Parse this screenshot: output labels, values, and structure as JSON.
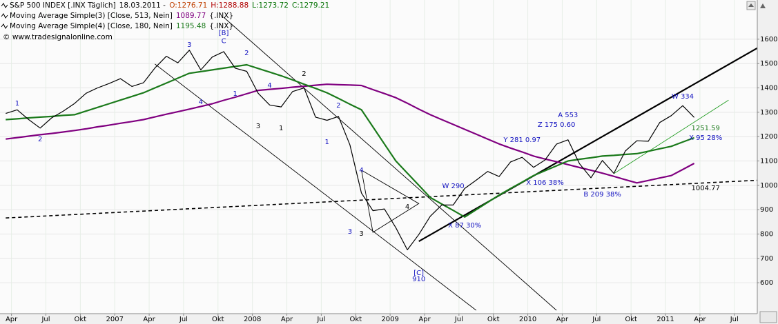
{
  "chart_data": {
    "type": "line",
    "quote": {
      "date": "18.03.2011 -",
      "open": "O:1276.71",
      "high": "H:1288.88",
      "low": "L:1273.72",
      "close": "C:1279.21"
    },
    "watermark": "© www.tradesignalonline.com",
    "y_axis_side": "right",
    "grid": true,
    "x": [
      "2006-03",
      "2006-04",
      "2006-05",
      "2006-06",
      "2006-07",
      "2006-08",
      "2006-09",
      "2006-10",
      "2006-11",
      "2006-12",
      "2007-01",
      "2007-02",
      "2007-03",
      "2007-04",
      "2007-05",
      "2007-06",
      "2007-07",
      "2007-08",
      "2007-09",
      "2007-10",
      "2007-11",
      "2007-12",
      "2008-01",
      "2008-02",
      "2008-03",
      "2008-04",
      "2008-05",
      "2008-06",
      "2008-07",
      "2008-08",
      "2008-09",
      "2008-10",
      "2008-11",
      "2008-12",
      "2009-01",
      "2009-02",
      "2009-03",
      "2009-04",
      "2009-05",
      "2009-06",
      "2009-07",
      "2009-08",
      "2009-09",
      "2009-10",
      "2009-11",
      "2009-12",
      "2010-01",
      "2010-02",
      "2010-03",
      "2010-04",
      "2010-05",
      "2010-06",
      "2010-07",
      "2010-08",
      "2010-09",
      "2010-10",
      "2010-11",
      "2010-12",
      "2011-01",
      "2011-02",
      "2011-03"
    ],
    "series": [
      {
        "name": "S&P 500 INDEX [.INX Täglich]",
        "color": "#000000",
        "values": [
          1295,
          1310,
          1270,
          1235,
          1277,
          1304,
          1336,
          1378,
          1400,
          1418,
          1438,
          1406,
          1421,
          1482,
          1530,
          1503,
          1555,
          1474,
          1527,
          1549,
          1481,
          1468,
          1378,
          1330,
          1322,
          1385,
          1400,
          1280,
          1267,
          1283,
          1166,
          968,
          896,
          903,
          826,
          735,
          798,
          873,
          919,
          919,
          987,
          1021,
          1057,
          1036,
          1096,
          1115,
          1074,
          1104,
          1169,
          1187,
          1089,
          1031,
          1102,
          1049,
          1141,
          1183,
          1181,
          1258,
          1286,
          1327,
          1279
        ]
      },
      {
        "name": "Moving Average Simple(3) [Close, 513, Nein]",
        "color": "#800080",
        "last_value": 1089.77,
        "source": "{.INX}",
        "values": [
          1190,
          1196,
          1202,
          1208,
          1213,
          1219,
          1225,
          1232,
          1240,
          1247,
          1255,
          1262,
          1270,
          1281,
          1292,
          1302,
          1313,
          1324,
          1335,
          1349,
          1362,
          1376,
          1390,
          1394,
          1398,
          1403,
          1407,
          1411,
          1415,
          1413,
          1412,
          1410,
          1393,
          1377,
          1360,
          1337,
          1313,
          1290,
          1270,
          1250,
          1230,
          1210,
          1190,
          1170,
          1153,
          1137,
          1120,
          1108,
          1097,
          1085,
          1073,
          1062,
          1050,
          1037,
          1023,
          1010,
          1020,
          1030,
          1040,
          1065,
          1090
        ]
      },
      {
        "name": "Moving Average Simple(4) [Close, 180, Nein]",
        "color": "#1b7a1b",
        "last_value": 1195.48,
        "source": "{.INX}",
        "values": [
          1270,
          1273,
          1277,
          1280,
          1283,
          1287,
          1290,
          1305,
          1320,
          1335,
          1350,
          1365,
          1380,
          1400,
          1420,
          1440,
          1460,
          1467,
          1474,
          1481,
          1488,
          1495,
          1480,
          1465,
          1450,
          1433,
          1415,
          1398,
          1380,
          1357,
          1333,
          1310,
          1240,
          1170,
          1100,
          1050,
          1000,
          950,
          923,
          897,
          870,
          900,
          930,
          960,
          987,
          1013,
          1040,
          1060,
          1080,
          1100,
          1107,
          1113,
          1120,
          1123,
          1127,
          1130,
          1140,
          1150,
          1160,
          1178,
          1195
        ]
      }
    ],
    "lines": [
      {
        "x": [
          "2007-04",
          "2009-08"
        ],
        "y": [
          1498,
          487
        ],
        "color": "#000000",
        "style": "thin"
      },
      {
        "x": [
          "2007-10",
          "2010-03"
        ],
        "y": [
          1690,
          487
        ],
        "color": "#000000",
        "style": "thin"
      },
      {
        "x": [
          "2008-10",
          "2009-03",
          "2008-11",
          "2008-10"
        ],
        "y": [
          1062,
          925,
          807,
          1062
        ],
        "color": "#000000",
        "style": "thin"
      },
      {
        "x": [
          "2009-03",
          "2011-09"
        ],
        "y": [
          770,
          1577
        ],
        "color": "#000000",
        "style": "thick"
      },
      {
        "x": [
          "2006-03",
          "2011-09"
        ],
        "y": [
          866,
          1022
        ],
        "color": "#000000",
        "style": "dashed"
      },
      {
        "x": [
          "2010-08",
          "2011-06"
        ],
        "y": [
          1048,
          1350
        ],
        "color": "#1b9a1b",
        "style": "thin"
      }
    ],
    "annotations": [
      {
        "text": "1",
        "x": "2006-04",
        "y": 1337,
        "color": "#1010c0"
      },
      {
        "text": "2",
        "x": "2006-06",
        "y": 1189,
        "color": "#1010c0"
      },
      {
        "text": "3",
        "x": "2007-07",
        "y": 1577,
        "color": "#1010c0"
      },
      {
        "text": "4",
        "x": "2007-08",
        "y": 1342,
        "color": "#1010c0"
      },
      {
        "text": "[B]",
        "x": "2007-10",
        "y": 1625,
        "color": "#1010c0"
      },
      {
        "text": "C",
        "x": "2007-10",
        "y": 1592,
        "color": "#1010c0"
      },
      {
        "text": "2",
        "x": "2007-12",
        "y": 1543,
        "color": "#1010c0"
      },
      {
        "text": "1",
        "x": "2007-11",
        "y": 1376,
        "color": "#1010c0"
      },
      {
        "text": "4",
        "x": "2008-02",
        "y": 1410,
        "color": "#1010c0"
      },
      {
        "text": "3",
        "x": "2008-01",
        "y": 1243,
        "color": "#000000"
      },
      {
        "text": "1",
        "x": "2008-03",
        "y": 1235,
        "color": "#000000"
      },
      {
        "text": "2",
        "x": "2008-05",
        "y": 1458,
        "color": "#000000"
      },
      {
        "text": "1",
        "x": "2008-07",
        "y": 1178,
        "color": "#1010c0"
      },
      {
        "text": "2",
        "x": "2008-08",
        "y": 1328,
        "color": "#1010c0"
      },
      {
        "text": "4",
        "x": "2008-10",
        "y": 1062,
        "color": "#1010c0"
      },
      {
        "text": "3",
        "x": "2008-09",
        "y": 810,
        "color": "#1010c0"
      },
      {
        "text": "3",
        "x": "2008-10",
        "y": 801,
        "color": "#000000"
      },
      {
        "text": "4",
        "x": "2009-02",
        "y": 912,
        "color": "#000000"
      },
      {
        "text": "[C]",
        "x": "2009-03",
        "y": 640,
        "color": "#1010c0"
      },
      {
        "text": "910",
        "x": "2009-03",
        "y": 615,
        "color": "#1010c0"
      },
      {
        "text": "W 290",
        "x": "2009-06",
        "y": 997,
        "color": "#1010c0"
      },
      {
        "text": "X 87 30%",
        "x": "2009-07",
        "y": 835,
        "color": "#1010c0"
      },
      {
        "text": "Y 281 0.97",
        "x": "2009-12",
        "y": 1186,
        "color": "#1010c0"
      },
      {
        "text": "A 553",
        "x": "2010-04",
        "y": 1288,
        "color": "#1010c0"
      },
      {
        "text": "Z 175 0.60",
        "x": "2010-03",
        "y": 1249,
        "color": "#1010c0"
      },
      {
        "text": "X 106  38%",
        "x": "2010-02",
        "y": 1011,
        "color": "#1010c0"
      },
      {
        "text": "B 209 38%",
        "x": "2010-07",
        "y": 963,
        "color": "#1010c0"
      },
      {
        "text": "W 334",
        "x": "2011-02",
        "y": 1365,
        "color": "#1010c0"
      },
      {
        "text": "1251.59",
        "x": "2011-04",
        "y": 1235,
        "color": "#1b7a1b"
      },
      {
        "text": "X 95 28%",
        "x": "2011-04",
        "y": 1195,
        "color": "#1010c0"
      },
      {
        "text": "1004.77",
        "x": "2011-04",
        "y": 988,
        "color": "#000000"
      }
    ],
    "xlim": [
      "2006-03",
      "2011-09"
    ],
    "xticks": [
      {
        "value": "2006-04",
        "label": "Apr"
      },
      {
        "value": "2006-07",
        "label": "Jul"
      },
      {
        "value": "2006-10",
        "label": "Okt"
      },
      {
        "value": "2007-01",
        "label": "2007"
      },
      {
        "value": "2007-04",
        "label": "Apr"
      },
      {
        "value": "2007-07",
        "label": "Jul"
      },
      {
        "value": "2007-10",
        "label": "Okt"
      },
      {
        "value": "2008-01",
        "label": "2008"
      },
      {
        "value": "2008-04",
        "label": "Apr"
      },
      {
        "value": "2008-07",
        "label": "Jul"
      },
      {
        "value": "2008-10",
        "label": "Okt"
      },
      {
        "value": "2009-01",
        "label": "2009"
      },
      {
        "value": "2009-04",
        "label": "Apr"
      },
      {
        "value": "2009-07",
        "label": "Jul"
      },
      {
        "value": "2009-10",
        "label": "Okt"
      },
      {
        "value": "2010-01",
        "label": "2010"
      },
      {
        "value": "2010-04",
        "label": "Apr"
      },
      {
        "value": "2010-07",
        "label": "Jul"
      },
      {
        "value": "2010-10",
        "label": "Okt"
      },
      {
        "value": "2011-01",
        "label": "2011"
      },
      {
        "value": "2011-04",
        "label": "Apr"
      },
      {
        "value": "2011-07",
        "label": "Jul"
      }
    ],
    "ylim": [
      473,
      1761
    ],
    "yticks": [
      600,
      700,
      800,
      900,
      1000,
      1100,
      1200,
      1300,
      1400,
      1500,
      1600
    ]
  }
}
